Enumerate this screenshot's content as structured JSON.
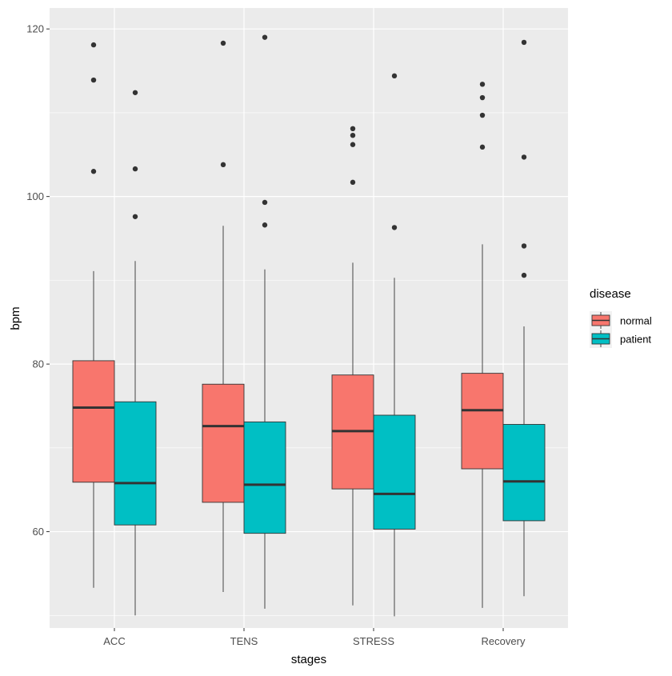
{
  "chart_data": {
    "type": "boxplot",
    "xlabel": "stages",
    "ylabel": "bpm",
    "categories": [
      "ACC",
      "TENS",
      "STRESS",
      "Recovery"
    ],
    "ylim": [
      48.5,
      122.5
    ],
    "y_ticks": [
      60,
      80,
      100,
      120
    ],
    "grid": true,
    "legend": {
      "title": "disease",
      "position": "right",
      "entries": [
        {
          "label": "normal",
          "color": "#F8766D"
        },
        {
          "label": "patient",
          "color": "#00BFC4"
        }
      ]
    },
    "series": [
      {
        "name": "normal",
        "color": "#F8766D",
        "boxes": [
          {
            "category": "ACC",
            "whisker_low": 53.3,
            "q1": 65.9,
            "median": 74.8,
            "q3": 80.4,
            "whisker_high": 91.1,
            "outliers": [
              103.0,
              113.9,
              118.1
            ]
          },
          {
            "category": "TENS",
            "whisker_low": 52.8,
            "q1": 63.5,
            "median": 72.6,
            "q3": 77.6,
            "whisker_high": 96.5,
            "outliers": [
              103.8,
              118.3
            ]
          },
          {
            "category": "STRESS",
            "whisker_low": 51.2,
            "q1": 65.1,
            "median": 72.0,
            "q3": 78.7,
            "whisker_high": 92.1,
            "outliers": [
              101.7,
              106.2,
              107.3,
              108.1
            ]
          },
          {
            "category": "Recovery",
            "whisker_low": 50.9,
            "q1": 67.5,
            "median": 74.5,
            "q3": 78.9,
            "whisker_high": 94.3,
            "outliers": [
              105.9,
              109.7,
              111.8,
              113.4
            ]
          }
        ]
      },
      {
        "name": "patient",
        "color": "#00BFC4",
        "boxes": [
          {
            "category": "ACC",
            "whisker_low": 50.0,
            "q1": 60.8,
            "median": 65.8,
            "q3": 75.5,
            "whisker_high": 92.3,
            "outliers": [
              97.6,
              103.3,
              112.4
            ]
          },
          {
            "category": "TENS",
            "whisker_low": 50.8,
            "q1": 59.8,
            "median": 65.6,
            "q3": 73.1,
            "whisker_high": 91.3,
            "outliers": [
              96.6,
              99.3,
              119.0
            ]
          },
          {
            "category": "STRESS",
            "whisker_low": 49.9,
            "q1": 60.3,
            "median": 64.5,
            "q3": 73.9,
            "whisker_high": 90.3,
            "outliers": [
              96.3,
              114.4
            ]
          },
          {
            "category": "Recovery",
            "whisker_low": 52.3,
            "q1": 61.3,
            "median": 66.0,
            "q3": 72.8,
            "whisker_high": 84.5,
            "outliers": [
              90.6,
              94.1,
              104.7,
              118.4
            ]
          }
        ]
      }
    ]
  }
}
